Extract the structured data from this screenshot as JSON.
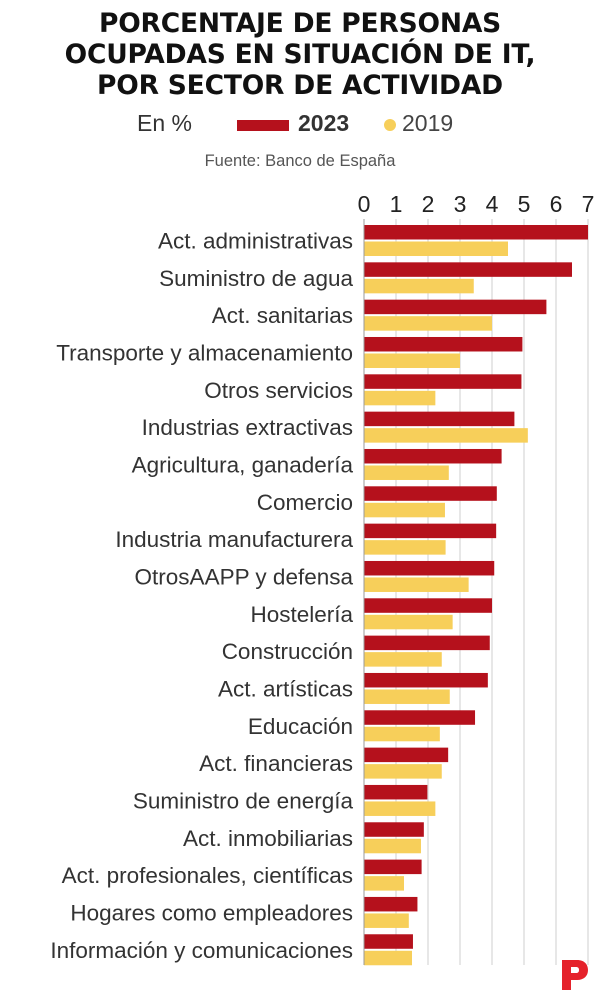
{
  "header": {
    "title_lines": [
      "PORCENTAJE DE PERSONAS",
      "OCUPADAS EN SITUACIÓN DE IT,",
      "POR SECTOR DE ACTIVIDAD"
    ],
    "unit": "En %",
    "source": "Fuente: Banco de España"
  },
  "colors": {
    "series_2023": "#b5111c",
    "series_2019": "#f7cf5a",
    "grid": "#cfcfcf"
  },
  "chart_data": {
    "type": "bar",
    "orientation": "horizontal",
    "categories": [
      "Act. administrativas",
      "Suministro de agua",
      "Act. sanitarias",
      "Transporte y almacenamiento",
      "Otros servicios",
      "Industrias extractivas",
      "Agricultura, ganadería",
      "Comercio",
      "Industria manufacturera",
      "OtrosAAPP y defensa",
      "Hostelería",
      "Construcción",
      "Act. artísticas",
      "Educación",
      "Act. financieras",
      "Suministro de energía",
      "Act. inmobiliarias",
      "Act. profesionales, científicas",
      "Hogares como empleadores",
      "Información y comunicaciones"
    ],
    "series": [
      {
        "name": "2023",
        "values": [
          7.0,
          6.5,
          5.7,
          4.95,
          4.92,
          4.7,
          4.3,
          4.15,
          4.13,
          4.07,
          4.0,
          3.93,
          3.87,
          3.47,
          2.63,
          1.98,
          1.87,
          1.8,
          1.67,
          1.53
        ]
      },
      {
        "name": "2019",
        "values": [
          4.5,
          3.43,
          4.0,
          3.0,
          2.23,
          5.12,
          2.65,
          2.53,
          2.55,
          3.27,
          2.77,
          2.43,
          2.68,
          2.37,
          2.43,
          2.23,
          1.78,
          1.25,
          1.4,
          1.5
        ]
      }
    ],
    "x_ticks": [
      "0",
      "1",
      "2",
      "3",
      "4",
      "5",
      "6",
      "7"
    ],
    "xlim": [
      0,
      7
    ],
    "grid": true,
    "legend_position": "top"
  }
}
